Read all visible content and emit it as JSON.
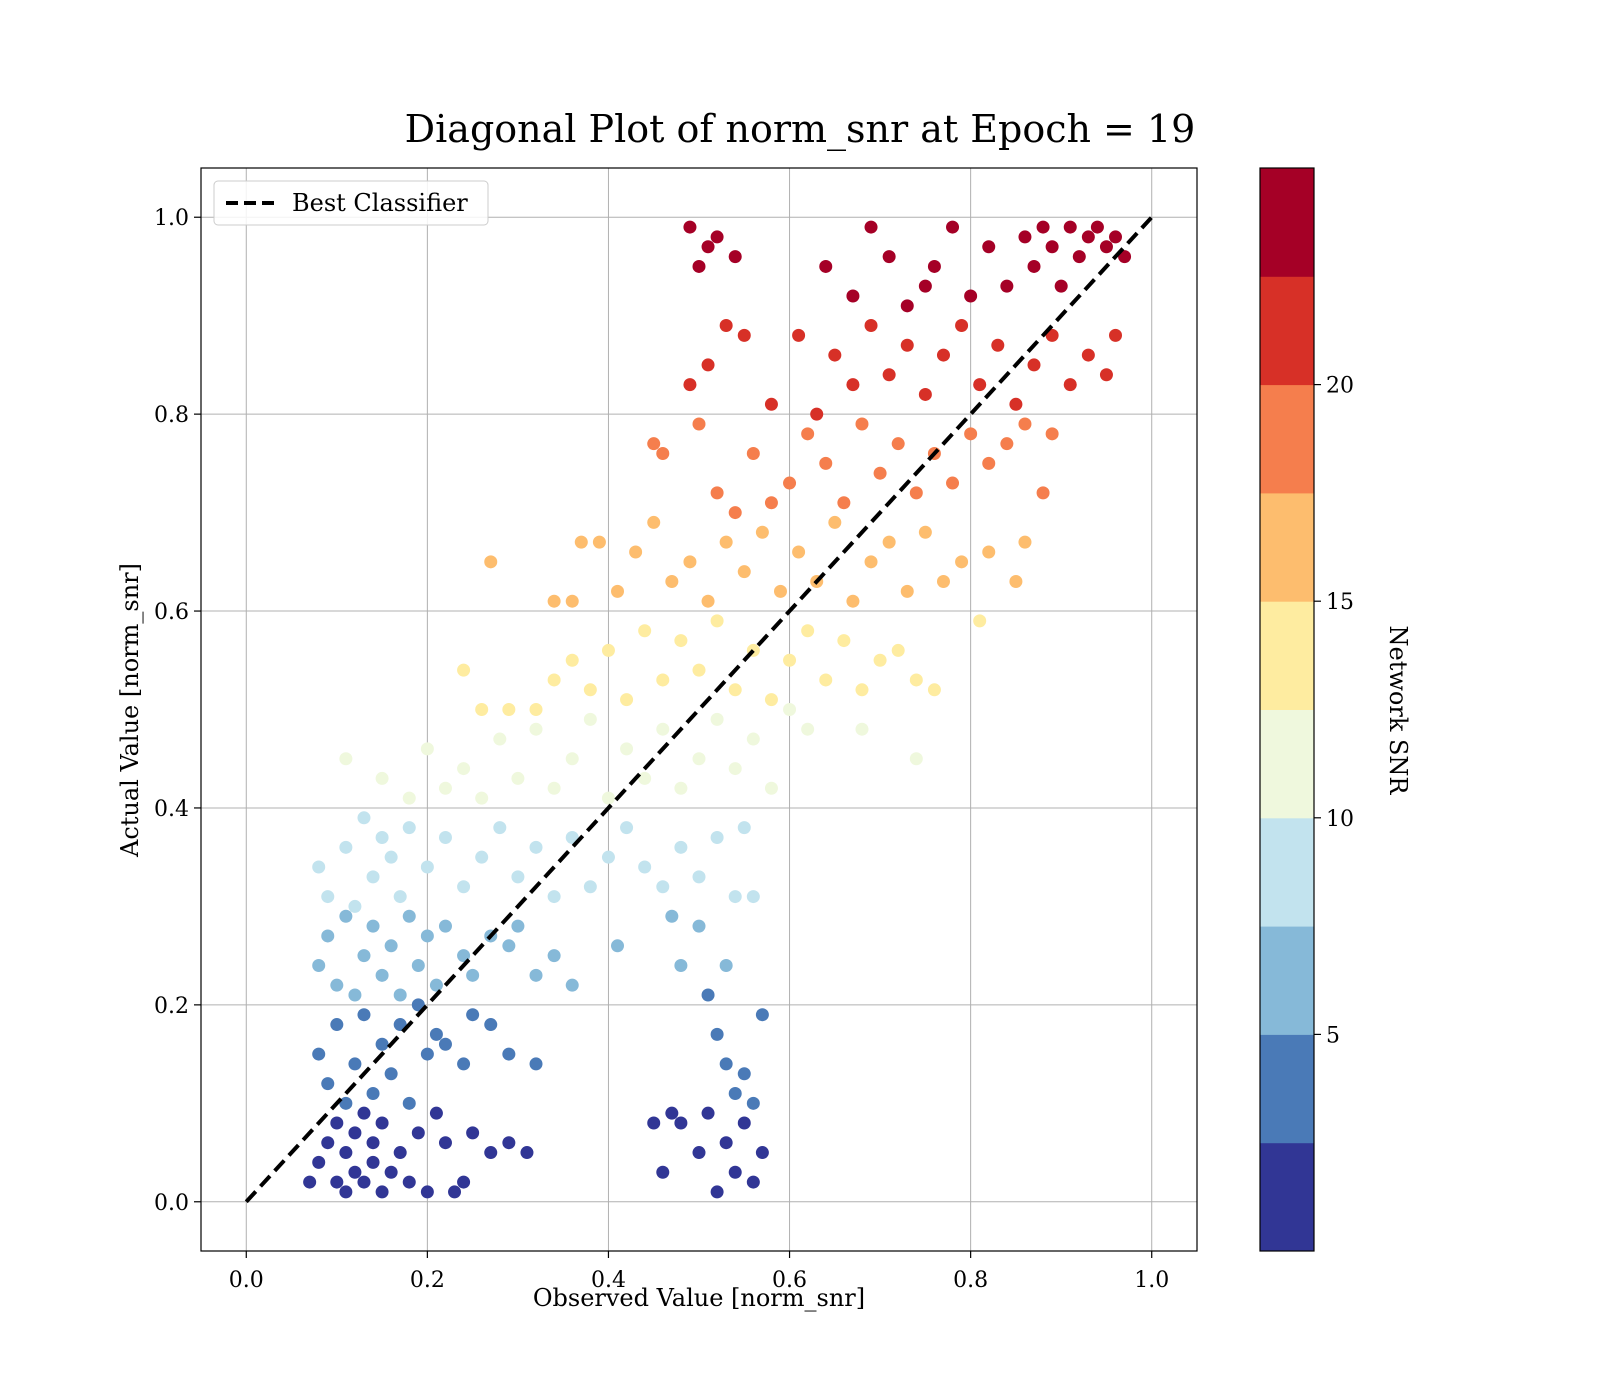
{
  "chart_data": {
    "type": "scatter",
    "title": "Diagonal Plot of norm_snr at Epoch = 19",
    "xlabel": "Observed Value [norm_snr]",
    "ylabel": "Actual Value [norm_snr]",
    "xlim": [
      -0.05,
      1.05
    ],
    "ylim": [
      -0.05,
      1.05
    ],
    "x_ticks": [
      0.0,
      0.2,
      0.4,
      0.6,
      0.8,
      1.0
    ],
    "y_ticks": [
      0.0,
      0.2,
      0.4,
      0.6,
      0.8,
      1.0
    ],
    "x_tick_labels": [
      "0.0",
      "0.2",
      "0.4",
      "0.6",
      "0.8",
      "1.0"
    ],
    "y_tick_labels": [
      "0.0",
      "0.2",
      "0.4",
      "0.6",
      "0.8",
      "1.0"
    ],
    "grid": true,
    "legend": {
      "position": "top-left",
      "entries": [
        {
          "label": "Best Classifier",
          "style": "dashed",
          "color": "#000000"
        }
      ]
    },
    "reference_line": {
      "name": "Best Classifier",
      "x": [
        0.0,
        1.0
      ],
      "y": [
        0.0,
        1.0
      ]
    },
    "colorbar": {
      "label": "Network SNR",
      "range": [
        0,
        25
      ],
      "ticks": [
        5,
        10,
        15,
        20
      ],
      "tick_labels": [
        "5",
        "10",
        "15",
        "20"
      ],
      "colors": [
        "#313695",
        "#4a7ab7",
        "#86b9d8",
        "#c2e3ee",
        "#eff8dd",
        "#feeca0",
        "#fdbd6e",
        "#f57e4d",
        "#d73027",
        "#a50026"
      ]
    },
    "series": [
      {
        "snr_band": "0-2.5",
        "color": "#313695",
        "points": [
          [
            0.07,
            0.02
          ],
          [
            0.08,
            0.04
          ],
          [
            0.09,
            0.06
          ],
          [
            0.1,
            0.02
          ],
          [
            0.1,
            0.08
          ],
          [
            0.11,
            0.01
          ],
          [
            0.11,
            0.05
          ],
          [
            0.12,
            0.03
          ],
          [
            0.12,
            0.07
          ],
          [
            0.13,
            0.09
          ],
          [
            0.13,
            0.02
          ],
          [
            0.14,
            0.04
          ],
          [
            0.14,
            0.06
          ],
          [
            0.15,
            0.01
          ],
          [
            0.15,
            0.08
          ],
          [
            0.16,
            0.03
          ],
          [
            0.17,
            0.05
          ],
          [
            0.18,
            0.02
          ],
          [
            0.19,
            0.07
          ],
          [
            0.2,
            0.01
          ],
          [
            0.21,
            0.09
          ],
          [
            0.22,
            0.06
          ],
          [
            0.23,
            0.01
          ],
          [
            0.24,
            0.02
          ],
          [
            0.25,
            0.07
          ],
          [
            0.27,
            0.05
          ],
          [
            0.29,
            0.06
          ],
          [
            0.31,
            0.05
          ],
          [
            0.45,
            0.08
          ],
          [
            0.47,
            0.09
          ],
          [
            0.48,
            0.08
          ],
          [
            0.5,
            0.05
          ],
          [
            0.51,
            0.09
          ],
          [
            0.52,
            0.01
          ],
          [
            0.53,
            0.06
          ],
          [
            0.54,
            0.03
          ],
          [
            0.55,
            0.08
          ],
          [
            0.56,
            0.02
          ],
          [
            0.57,
            0.05
          ],
          [
            0.46,
            0.03
          ]
        ]
      },
      {
        "snr_band": "2.5-5",
        "color": "#4a7ab7",
        "points": [
          [
            0.08,
            0.15
          ],
          [
            0.09,
            0.12
          ],
          [
            0.1,
            0.18
          ],
          [
            0.11,
            0.1
          ],
          [
            0.12,
            0.14
          ],
          [
            0.13,
            0.19
          ],
          [
            0.14,
            0.11
          ],
          [
            0.15,
            0.16
          ],
          [
            0.16,
            0.13
          ],
          [
            0.17,
            0.18
          ],
          [
            0.18,
            0.1
          ],
          [
            0.19,
            0.2
          ],
          [
            0.2,
            0.15
          ],
          [
            0.21,
            0.17
          ],
          [
            0.22,
            0.16
          ],
          [
            0.24,
            0.14
          ],
          [
            0.25,
            0.19
          ],
          [
            0.27,
            0.18
          ],
          [
            0.29,
            0.15
          ],
          [
            0.32,
            0.14
          ],
          [
            0.51,
            0.21
          ],
          [
            0.52,
            0.17
          ],
          [
            0.53,
            0.14
          ],
          [
            0.54,
            0.11
          ],
          [
            0.55,
            0.13
          ],
          [
            0.56,
            0.1
          ],
          [
            0.57,
            0.19
          ]
        ]
      },
      {
        "snr_band": "5-7.5",
        "color": "#86b9d8",
        "points": [
          [
            0.08,
            0.24
          ],
          [
            0.09,
            0.27
          ],
          [
            0.1,
            0.22
          ],
          [
            0.11,
            0.29
          ],
          [
            0.12,
            0.21
          ],
          [
            0.13,
            0.25
          ],
          [
            0.14,
            0.28
          ],
          [
            0.15,
            0.23
          ],
          [
            0.16,
            0.26
          ],
          [
            0.17,
            0.21
          ],
          [
            0.18,
            0.29
          ],
          [
            0.19,
            0.24
          ],
          [
            0.2,
            0.27
          ],
          [
            0.21,
            0.22
          ],
          [
            0.22,
            0.28
          ],
          [
            0.24,
            0.25
          ],
          [
            0.25,
            0.23
          ],
          [
            0.27,
            0.27
          ],
          [
            0.29,
            0.26
          ],
          [
            0.3,
            0.28
          ],
          [
            0.32,
            0.23
          ],
          [
            0.34,
            0.25
          ],
          [
            0.36,
            0.22
          ],
          [
            0.41,
            0.26
          ],
          [
            0.47,
            0.29
          ],
          [
            0.48,
            0.24
          ],
          [
            0.5,
            0.28
          ],
          [
            0.53,
            0.24
          ]
        ]
      },
      {
        "snr_band": "7.5-10",
        "color": "#c2e3ee",
        "points": [
          [
            0.08,
            0.34
          ],
          [
            0.09,
            0.31
          ],
          [
            0.11,
            0.36
          ],
          [
            0.12,
            0.3
          ],
          [
            0.13,
            0.39
          ],
          [
            0.14,
            0.33
          ],
          [
            0.15,
            0.37
          ],
          [
            0.16,
            0.35
          ],
          [
            0.17,
            0.31
          ],
          [
            0.18,
            0.38
          ],
          [
            0.2,
            0.34
          ],
          [
            0.22,
            0.37
          ],
          [
            0.24,
            0.32
          ],
          [
            0.26,
            0.35
          ],
          [
            0.28,
            0.38
          ],
          [
            0.3,
            0.33
          ],
          [
            0.32,
            0.36
          ],
          [
            0.34,
            0.31
          ],
          [
            0.36,
            0.37
          ],
          [
            0.38,
            0.32
          ],
          [
            0.4,
            0.35
          ],
          [
            0.42,
            0.38
          ],
          [
            0.44,
            0.34
          ],
          [
            0.46,
            0.32
          ],
          [
            0.48,
            0.36
          ],
          [
            0.5,
            0.33
          ],
          [
            0.52,
            0.37
          ],
          [
            0.54,
            0.31
          ],
          [
            0.55,
            0.38
          ],
          [
            0.56,
            0.31
          ]
        ]
      },
      {
        "snr_band": "10-12.5",
        "color": "#eff8dd",
        "points": [
          [
            0.11,
            0.45
          ],
          [
            0.15,
            0.43
          ],
          [
            0.18,
            0.41
          ],
          [
            0.2,
            0.46
          ],
          [
            0.22,
            0.42
          ],
          [
            0.24,
            0.44
          ],
          [
            0.26,
            0.41
          ],
          [
            0.28,
            0.47
          ],
          [
            0.3,
            0.43
          ],
          [
            0.32,
            0.48
          ],
          [
            0.34,
            0.42
          ],
          [
            0.36,
            0.45
          ],
          [
            0.38,
            0.49
          ],
          [
            0.4,
            0.41
          ],
          [
            0.42,
            0.46
          ],
          [
            0.44,
            0.43
          ],
          [
            0.46,
            0.48
          ],
          [
            0.48,
            0.42
          ],
          [
            0.5,
            0.45
          ],
          [
            0.52,
            0.49
          ],
          [
            0.54,
            0.44
          ],
          [
            0.56,
            0.47
          ],
          [
            0.58,
            0.42
          ],
          [
            0.6,
            0.5
          ],
          [
            0.62,
            0.48
          ],
          [
            0.68,
            0.48
          ],
          [
            0.74,
            0.45
          ]
        ]
      },
      {
        "snr_band": "12.5-15",
        "color": "#feeca0",
        "points": [
          [
            0.24,
            0.54
          ],
          [
            0.26,
            0.5
          ],
          [
            0.29,
            0.5
          ],
          [
            0.32,
            0.5
          ],
          [
            0.34,
            0.53
          ],
          [
            0.36,
            0.55
          ],
          [
            0.38,
            0.52
          ],
          [
            0.4,
            0.56
          ],
          [
            0.42,
            0.51
          ],
          [
            0.44,
            0.58
          ],
          [
            0.46,
            0.53
          ],
          [
            0.48,
            0.57
          ],
          [
            0.5,
            0.54
          ],
          [
            0.52,
            0.59
          ],
          [
            0.54,
            0.52
          ],
          [
            0.56,
            0.56
          ],
          [
            0.58,
            0.51
          ],
          [
            0.6,
            0.55
          ],
          [
            0.62,
            0.58
          ],
          [
            0.64,
            0.53
          ],
          [
            0.66,
            0.57
          ],
          [
            0.68,
            0.52
          ],
          [
            0.7,
            0.55
          ],
          [
            0.72,
            0.56
          ],
          [
            0.74,
            0.53
          ],
          [
            0.76,
            0.52
          ],
          [
            0.81,
            0.59
          ]
        ]
      },
      {
        "snr_band": "15-17.5",
        "color": "#fdbd6e",
        "points": [
          [
            0.27,
            0.65
          ],
          [
            0.34,
            0.61
          ],
          [
            0.36,
            0.61
          ],
          [
            0.37,
            0.67
          ],
          [
            0.39,
            0.67
          ],
          [
            0.41,
            0.62
          ],
          [
            0.43,
            0.66
          ],
          [
            0.45,
            0.69
          ],
          [
            0.47,
            0.63
          ],
          [
            0.49,
            0.65
          ],
          [
            0.51,
            0.61
          ],
          [
            0.53,
            0.67
          ],
          [
            0.55,
            0.64
          ],
          [
            0.57,
            0.68
          ],
          [
            0.59,
            0.62
          ],
          [
            0.61,
            0.66
          ],
          [
            0.63,
            0.63
          ],
          [
            0.65,
            0.69
          ],
          [
            0.67,
            0.61
          ],
          [
            0.69,
            0.65
          ],
          [
            0.71,
            0.67
          ],
          [
            0.73,
            0.62
          ],
          [
            0.75,
            0.68
          ],
          [
            0.77,
            0.63
          ],
          [
            0.79,
            0.65
          ],
          [
            0.82,
            0.66
          ],
          [
            0.85,
            0.63
          ],
          [
            0.86,
            0.67
          ]
        ]
      },
      {
        "snr_band": "17.5-20",
        "color": "#f57e4d",
        "points": [
          [
            0.45,
            0.77
          ],
          [
            0.46,
            0.76
          ],
          [
            0.5,
            0.79
          ],
          [
            0.52,
            0.72
          ],
          [
            0.54,
            0.7
          ],
          [
            0.56,
            0.76
          ],
          [
            0.58,
            0.71
          ],
          [
            0.6,
            0.73
          ],
          [
            0.62,
            0.78
          ],
          [
            0.64,
            0.75
          ],
          [
            0.66,
            0.71
          ],
          [
            0.68,
            0.79
          ],
          [
            0.7,
            0.74
          ],
          [
            0.72,
            0.77
          ],
          [
            0.74,
            0.72
          ],
          [
            0.76,
            0.76
          ],
          [
            0.78,
            0.73
          ],
          [
            0.8,
            0.78
          ],
          [
            0.82,
            0.75
          ],
          [
            0.84,
            0.77
          ],
          [
            0.86,
            0.79
          ],
          [
            0.88,
            0.72
          ],
          [
            0.89,
            0.78
          ]
        ]
      },
      {
        "snr_band": "20-22.5",
        "color": "#d73027",
        "points": [
          [
            0.49,
            0.83
          ],
          [
            0.51,
            0.85
          ],
          [
            0.53,
            0.89
          ],
          [
            0.55,
            0.88
          ],
          [
            0.58,
            0.81
          ],
          [
            0.61,
            0.88
          ],
          [
            0.63,
            0.8
          ],
          [
            0.65,
            0.86
          ],
          [
            0.67,
            0.83
          ],
          [
            0.69,
            0.89
          ],
          [
            0.71,
            0.84
          ],
          [
            0.73,
            0.87
          ],
          [
            0.75,
            0.82
          ],
          [
            0.77,
            0.86
          ],
          [
            0.79,
            0.89
          ],
          [
            0.81,
            0.83
          ],
          [
            0.83,
            0.87
          ],
          [
            0.85,
            0.81
          ],
          [
            0.87,
            0.85
          ],
          [
            0.89,
            0.88
          ],
          [
            0.91,
            0.83
          ],
          [
            0.93,
            0.86
          ],
          [
            0.95,
            0.84
          ],
          [
            0.96,
            0.88
          ]
        ]
      },
      {
        "snr_band": "22.5-25",
        "color": "#a50026",
        "points": [
          [
            0.49,
            0.99
          ],
          [
            0.5,
            0.95
          ],
          [
            0.51,
            0.97
          ],
          [
            0.52,
            0.98
          ],
          [
            0.54,
            0.96
          ],
          [
            0.64,
            0.95
          ],
          [
            0.67,
            0.92
          ],
          [
            0.69,
            0.99
          ],
          [
            0.71,
            0.96
          ],
          [
            0.73,
            0.91
          ],
          [
            0.75,
            0.93
          ],
          [
            0.76,
            0.95
          ],
          [
            0.78,
            0.99
          ],
          [
            0.8,
            0.92
          ],
          [
            0.82,
            0.97
          ],
          [
            0.84,
            0.93
          ],
          [
            0.86,
            0.98
          ],
          [
            0.87,
            0.95
          ],
          [
            0.88,
            0.99
          ],
          [
            0.89,
            0.97
          ],
          [
            0.9,
            0.93
          ],
          [
            0.91,
            0.99
          ],
          [
            0.92,
            0.96
          ],
          [
            0.93,
            0.98
          ],
          [
            0.94,
            0.99
          ],
          [
            0.95,
            0.97
          ],
          [
            0.96,
            0.98
          ],
          [
            0.97,
            0.96
          ]
        ]
      }
    ]
  }
}
